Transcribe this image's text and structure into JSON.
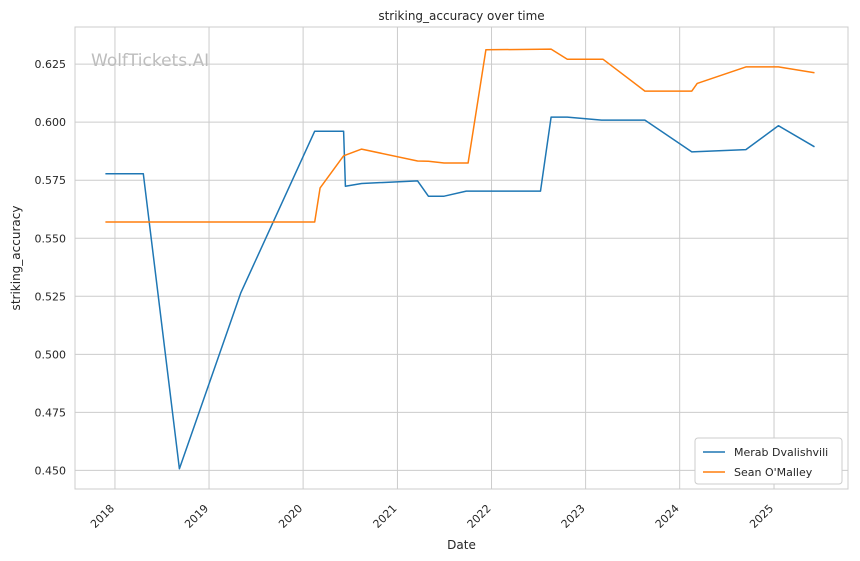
{
  "watermark": "WolfTickets.AI",
  "chart_data": {
    "type": "line",
    "title": "striking_accuracy over time",
    "xlabel": "Date",
    "ylabel": "striking_accuracy",
    "xlim": [
      "2017-07-30",
      "2025-10-15"
    ],
    "ylim": [
      0.442,
      0.641
    ],
    "xticks": [
      {
        "date": "2018-01-01",
        "label": "2018"
      },
      {
        "date": "2019-01-01",
        "label": "2019"
      },
      {
        "date": "2020-01-01",
        "label": "2020"
      },
      {
        "date": "2021-01-01",
        "label": "2021"
      },
      {
        "date": "2022-01-01",
        "label": "2022"
      },
      {
        "date": "2023-01-01",
        "label": "2023"
      },
      {
        "date": "2024-01-01",
        "label": "2024"
      },
      {
        "date": "2025-01-01",
        "label": "2025"
      }
    ],
    "yticks": [
      {
        "value": 0.45,
        "label": "0.450"
      },
      {
        "value": 0.475,
        "label": "0.475"
      },
      {
        "value": 0.5,
        "label": "0.500"
      },
      {
        "value": 0.525,
        "label": "0.525"
      },
      {
        "value": 0.55,
        "label": "0.550"
      },
      {
        "value": 0.575,
        "label": "0.575"
      },
      {
        "value": 0.6,
        "label": "0.600"
      },
      {
        "value": 0.625,
        "label": "0.625"
      }
    ],
    "grid": true,
    "legend_position": "lower-right",
    "series": [
      {
        "name": "Merab Dvalishvili",
        "color": "#1f77b4",
        "points": [
          {
            "x": "2017-11-25",
            "y": 0.5778
          },
          {
            "x": "2018-04-21",
            "y": 0.5778
          },
          {
            "x": "2018-09-08",
            "y": 0.4507
          },
          {
            "x": "2019-05-04",
            "y": 0.5264
          },
          {
            "x": "2020-02-15",
            "y": 0.5961
          },
          {
            "x": "2020-06-06",
            "y": 0.5961
          },
          {
            "x": "2020-06-13",
            "y": 0.5724
          },
          {
            "x": "2020-08-15",
            "y": 0.5736
          },
          {
            "x": "2021-03-20",
            "y": 0.5747
          },
          {
            "x": "2021-05-01",
            "y": 0.5681
          },
          {
            "x": "2021-07-01",
            "y": 0.5681
          },
          {
            "x": "2021-09-25",
            "y": 0.5703
          },
          {
            "x": "2022-07-10",
            "y": 0.5703
          },
          {
            "x": "2022-08-20",
            "y": 0.6022
          },
          {
            "x": "2022-10-22",
            "y": 0.6022
          },
          {
            "x": "2023-03-04",
            "y": 0.6009
          },
          {
            "x": "2023-08-19",
            "y": 0.6009
          },
          {
            "x": "2024-02-17",
            "y": 0.5872
          },
          {
            "x": "2024-09-14",
            "y": 0.5882
          },
          {
            "x": "2025-01-18",
            "y": 0.5985
          },
          {
            "x": "2025-06-07",
            "y": 0.5894
          }
        ]
      },
      {
        "name": "Sean O'Malley",
        "color": "#ff7f0e",
        "points": [
          {
            "x": "2017-11-25",
            "y": 0.557
          },
          {
            "x": "2020-02-15",
            "y": 0.557
          },
          {
            "x": "2020-03-07",
            "y": 0.5717
          },
          {
            "x": "2020-06-06",
            "y": 0.5855
          },
          {
            "x": "2020-08-15",
            "y": 0.5884
          },
          {
            "x": "2021-03-20",
            "y": 0.5833
          },
          {
            "x": "2021-05-01",
            "y": 0.5832
          },
          {
            "x": "2021-07-01",
            "y": 0.5824
          },
          {
            "x": "2021-10-02",
            "y": 0.5824
          },
          {
            "x": "2021-12-10",
            "y": 0.6312
          },
          {
            "x": "2022-08-20",
            "y": 0.6315
          },
          {
            "x": "2022-10-22",
            "y": 0.6271
          },
          {
            "x": "2023-03-10",
            "y": 0.6271
          },
          {
            "x": "2023-08-19",
            "y": 0.6134
          },
          {
            "x": "2024-02-17",
            "y": 0.6134
          },
          {
            "x": "2024-03-09",
            "y": 0.6167
          },
          {
            "x": "2024-09-14",
            "y": 0.6238
          },
          {
            "x": "2025-01-18",
            "y": 0.6238
          },
          {
            "x": "2025-06-07",
            "y": 0.6213
          }
        ]
      }
    ]
  }
}
